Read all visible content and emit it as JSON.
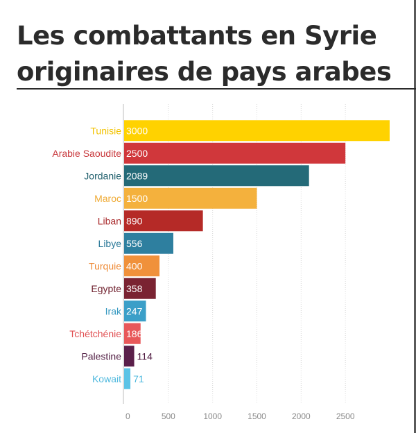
{
  "title": "Les combattants en Syrie originaires de pays arabes",
  "chart_data": {
    "type": "bar",
    "orientation": "horizontal",
    "title": "Les combattants en Syrie originaires de pays arabes",
    "xlabel": "",
    "ylabel": "",
    "xlim": [
      0,
      3000
    ],
    "grid": true,
    "categories": [
      "Tunisie",
      "Arabie Saoudite",
      "Jordanie",
      "Maroc",
      "Liban",
      "Libye",
      "Turquie",
      "Egypte",
      "Irak",
      "Tchétchénie",
      "Palestine",
      "Kowait"
    ],
    "values": [
      3000,
      2500,
      2089,
      1500,
      890,
      556,
      400,
      358,
      247,
      186,
      114,
      71
    ],
    "value_labels": [
      "3000",
      "2500",
      "2089",
      "1500",
      "890",
      "556",
      "400",
      "358",
      "247",
      "186",
      "114",
      "71"
    ],
    "colors": [
      "#ffd200",
      "#d0373b",
      "#246a78",
      "#f4b13d",
      "#b52a27",
      "#2e7f9f",
      "#f0913b",
      "#7a2332",
      "#3b9fc8",
      "#e8585a",
      "#5a1f4a",
      "#5cc3e6"
    ],
    "label_colors": [
      "#f2c200",
      "#c8383c",
      "#1f5f6c",
      "#efab36",
      "#a8282a",
      "#2a7898",
      "#ee8a36",
      "#6e1f2c",
      "#3598c0",
      "#e04e50",
      "#4f1b41",
      "#4fb9de"
    ],
    "x_ticks": [
      "0",
      "500",
      "1000",
      "1500",
      "2000",
      "2500"
    ]
  }
}
